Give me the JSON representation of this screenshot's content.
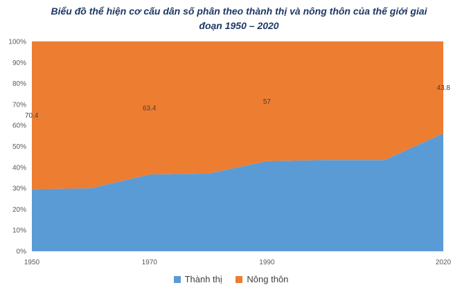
{
  "chart_data": {
    "type": "area",
    "stacked": "percent",
    "title": "Biểu đồ thể hiện cơ cấu dân số phân theo thành thị và nông thôn của thế giới giai đoạn 1950 – 2020",
    "x": [
      1950,
      1960,
      1970,
      1980,
      1990,
      2000,
      2010,
      2020
    ],
    "x_tick_labels": [
      "1950",
      "1970",
      "1990",
      "2020"
    ],
    "y_tick_labels": [
      "0%",
      "10%",
      "20%",
      "30%",
      "40%",
      "50%",
      "60%",
      "70%",
      "80%",
      "90%",
      "100%"
    ],
    "ylim": [
      0,
      100
    ],
    "grid": true,
    "legend_position": "bottom",
    "series": [
      {
        "name": "Thành thị",
        "color": "#5b9bd5",
        "values": [
          29.6,
          30,
          36.6,
          37,
          43,
          43.5,
          43.5,
          56.2
        ]
      },
      {
        "name": "Nông thôn",
        "color": "#ed7d31",
        "values": [
          70.4,
          70,
          63.4,
          63,
          57,
          56.5,
          56.5,
          43.8
        ]
      }
    ],
    "data_labels": [
      {
        "x": 1950,
        "series": "Nông thôn",
        "text": "70.4"
      },
      {
        "x": 1970,
        "series": "Nông thôn",
        "text": "63.4"
      },
      {
        "x": 1990,
        "series": "Nông thôn",
        "text": "57"
      },
      {
        "x": 2020,
        "series": "Nông thôn",
        "text": "43.8"
      }
    ]
  }
}
